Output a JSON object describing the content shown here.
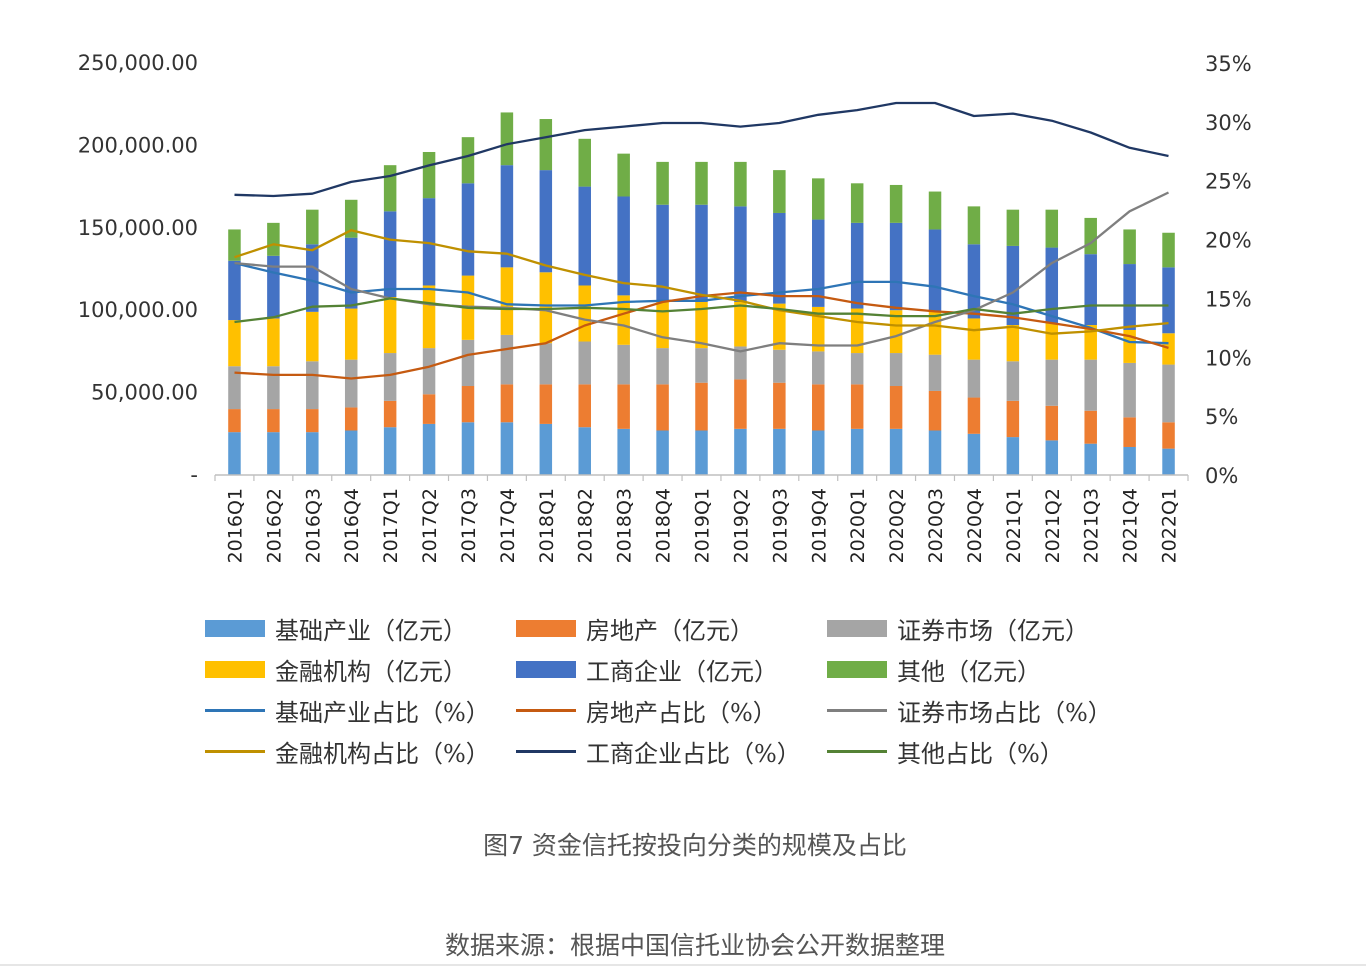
{
  "chart_data": {
    "type": "bar",
    "stacked": true,
    "categories": [
      "2016Q1",
      "2016Q2",
      "2016Q3",
      "2016Q4",
      "2017Q1",
      "2017Q2",
      "2017Q3",
      "2017Q4",
      "2018Q1",
      "2018Q2",
      "2018Q3",
      "2018Q4",
      "2019Q1",
      "2019Q2",
      "2019Q3",
      "2019Q4",
      "2020Q1",
      "2020Q2",
      "2020Q3",
      "2020Q4",
      "2021Q1",
      "2021Q2",
      "2021Q3",
      "2021Q4",
      "2022Q1"
    ],
    "y_left": {
      "ylim": [
        0,
        250000
      ],
      "ticks": [
        "-",
        "50,000.00",
        "100,000.00",
        "150,000.00",
        "200,000.00",
        "250,000.00"
      ],
      "tick_values": [
        0,
        50000,
        100000,
        150000,
        200000,
        250000
      ]
    },
    "y_right": {
      "ylim": [
        0,
        35
      ],
      "ticks": [
        "0%",
        "5%",
        "10%",
        "15%",
        "20%",
        "25%",
        "30%",
        "35%"
      ],
      "tick_values": [
        0,
        5,
        10,
        15,
        20,
        25,
        30,
        35
      ]
    },
    "bar_series": [
      {
        "name": "基础产业（亿元）",
        "color": "#5B9BD5",
        "values": [
          26000,
          26000,
          26000,
          27000,
          29000,
          31000,
          32000,
          32000,
          31000,
          29000,
          28000,
          27000,
          27000,
          28000,
          28000,
          27000,
          28000,
          28000,
          27000,
          25000,
          23000,
          21000,
          19000,
          17000,
          16000
        ]
      },
      {
        "name": "房地产（亿元）",
        "color": "#ED7D31",
        "values": [
          14000,
          14000,
          14000,
          14000,
          16000,
          18000,
          22000,
          23000,
          24000,
          26000,
          27000,
          28000,
          29000,
          30000,
          28000,
          28000,
          27000,
          26000,
          24000,
          22000,
          22000,
          21000,
          20000,
          18000,
          16000
        ]
      },
      {
        "name": "证券市场（亿元）",
        "color": "#A5A5A5",
        "values": [
          26000,
          26000,
          29000,
          29000,
          29000,
          28000,
          28000,
          30000,
          25000,
          26000,
          24000,
          22000,
          21000,
          20000,
          20000,
          20000,
          19000,
          20000,
          22000,
          23000,
          24000,
          28000,
          31000,
          33000,
          35000
        ]
      },
      {
        "name": "金融机构（亿元）",
        "color": "#FFC000",
        "values": [
          28000,
          29000,
          30000,
          31000,
          34000,
          38000,
          39000,
          41000,
          43000,
          34000,
          30000,
          28000,
          28000,
          27000,
          28000,
          27000,
          27000,
          26000,
          26000,
          25000,
          22000,
          22000,
          21000,
          20000,
          19000
        ]
      },
      {
        "name": "工商企业（亿元）",
        "color": "#4472C4",
        "values": [
          36000,
          38000,
          41000,
          43000,
          52000,
          53000,
          56000,
          62000,
          62000,
          60000,
          60000,
          59000,
          59000,
          58000,
          55000,
          53000,
          52000,
          53000,
          50000,
          45000,
          48000,
          46000,
          43000,
          40000,
          40000
        ]
      },
      {
        "name": "其他（亿元）",
        "color": "#70AD47",
        "values": [
          19000,
          20000,
          21000,
          23000,
          28000,
          28000,
          28000,
          32000,
          31000,
          29000,
          26000,
          26000,
          26000,
          27000,
          26000,
          25000,
          24000,
          23000,
          23000,
          23000,
          22000,
          23000,
          22000,
          21000,
          21000
        ]
      }
    ],
    "line_series": [
      {
        "name": "基础产业占比（%）",
        "color": "#2E75B6",
        "values": [
          18.0,
          17.2,
          16.5,
          15.5,
          15.8,
          15.8,
          15.5,
          14.5,
          14.4,
          14.4,
          14.7,
          14.8,
          14.8,
          15.2,
          15.5,
          15.8,
          16.4,
          16.4,
          16.0,
          15.2,
          14.5,
          13.5,
          12.5,
          11.3,
          11.2
        ]
      },
      {
        "name": "房地产占比（%）",
        "color": "#C55A11",
        "values": [
          8.7,
          8.5,
          8.5,
          8.2,
          8.5,
          9.2,
          10.2,
          10.7,
          11.2,
          12.7,
          13.7,
          14.7,
          15.2,
          15.5,
          15.2,
          15.2,
          14.6,
          14.2,
          13.9,
          13.7,
          13.4,
          12.9,
          12.4,
          11.8,
          10.8
        ]
      },
      {
        "name": "证券市场占比（%）",
        "color": "#7F7F7F",
        "values": [
          18.0,
          17.7,
          17.7,
          15.8,
          15.0,
          14.5,
          14.3,
          14.2,
          14.0,
          13.2,
          12.7,
          11.7,
          11.2,
          10.5,
          11.2,
          11.0,
          11.0,
          11.8,
          13.0,
          14.0,
          15.5,
          18.0,
          19.7,
          22.4,
          24.0
        ]
      },
      {
        "name": "金融机构占比（%）",
        "color": "#BF9000",
        "values": [
          18.5,
          19.6,
          19.1,
          20.8,
          20.0,
          19.7,
          19.0,
          18.8,
          17.8,
          17.0,
          16.3,
          16.0,
          15.3,
          14.8,
          14.0,
          13.5,
          13.0,
          12.7,
          12.7,
          12.3,
          12.6,
          12.0,
          12.2,
          12.6,
          12.9
        ]
      },
      {
        "name": "工商企业占比（%）",
        "color": "#203864",
        "values": [
          23.8,
          23.7,
          23.9,
          24.9,
          25.4,
          26.3,
          27.1,
          28.1,
          28.7,
          29.3,
          29.6,
          29.9,
          29.9,
          29.6,
          29.9,
          30.6,
          31.0,
          31.6,
          31.6,
          30.5,
          30.7,
          30.1,
          29.1,
          27.8,
          27.1
        ]
      },
      {
        "name": "其他占比（%）",
        "color": "#548235",
        "values": [
          13.0,
          13.4,
          14.3,
          14.4,
          15.0,
          14.6,
          14.2,
          14.1,
          14.1,
          14.2,
          14.1,
          13.9,
          14.1,
          14.4,
          14.1,
          13.7,
          13.7,
          13.5,
          13.5,
          14.1,
          13.7,
          14.1,
          14.4,
          14.4,
          14.4
        ]
      }
    ],
    "grid": false,
    "legend_placement": "bottom"
  },
  "caption": "图7 资金信托按投向分类的规模及占比",
  "source": "数据来源：根据中国信托业协会公开数据整理"
}
